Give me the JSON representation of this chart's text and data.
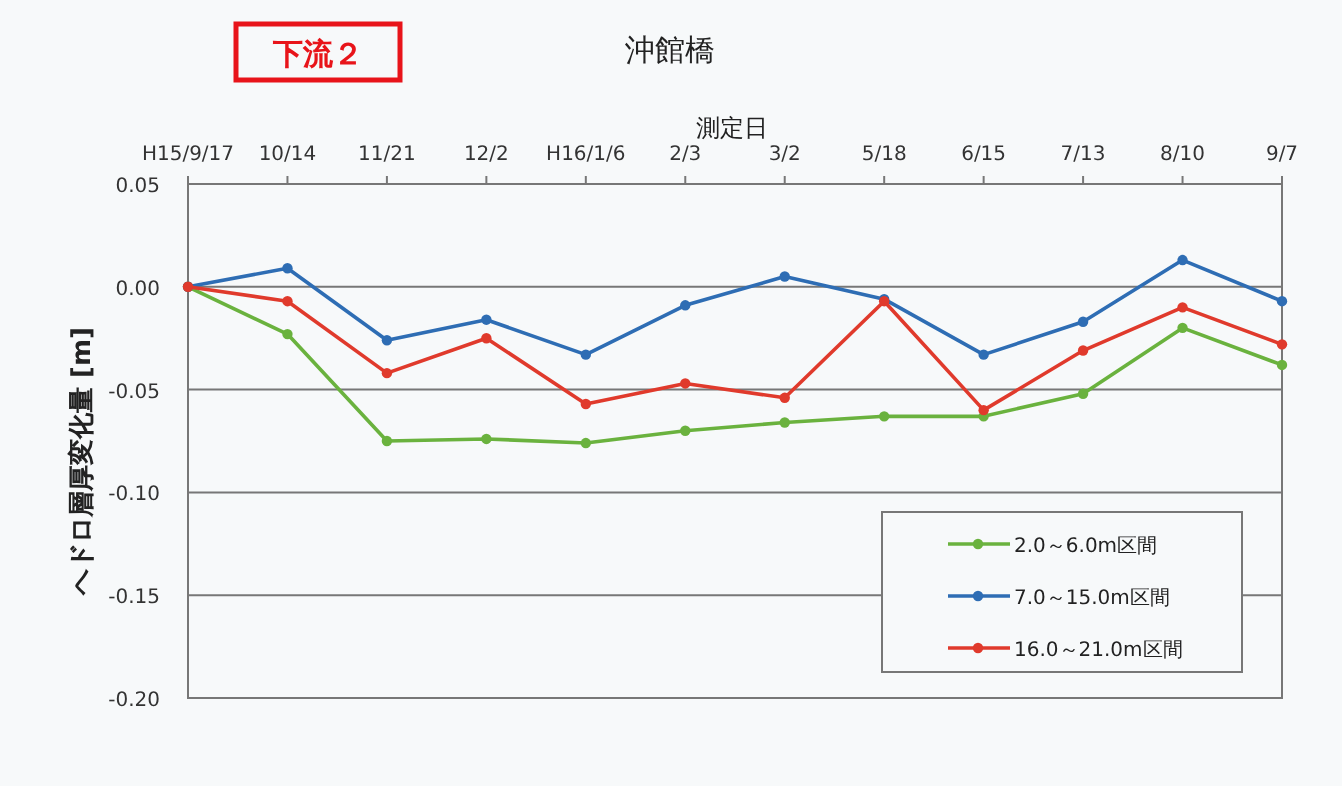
{
  "chart_data": {
    "type": "line",
    "title": "沖館橋",
    "annotations": [
      "下流２"
    ],
    "xlabel": "測定日",
    "ylabel": "ヘドロ層厚変化量 [m]",
    "categories": [
      "H15/9/17",
      "10/14",
      "11/21",
      "12/2",
      "H16/1/6",
      "2/3",
      "3/2",
      "5/18",
      "6/15",
      "7/13",
      "8/10",
      "9/7"
    ],
    "series": [
      {
        "name": "2.0～6.0m区間",
        "color": "#6ab23e",
        "values": [
          0,
          -0.023,
          -0.075,
          -0.074,
          -0.076,
          -0.07,
          -0.066,
          -0.063,
          -0.063,
          -0.052,
          -0.02,
          -0.038
        ]
      },
      {
        "name": "7.0～15.0m区間",
        "color": "#2e6db4",
        "values": [
          0,
          0.009,
          -0.026,
          -0.016,
          -0.033,
          -0.009,
          0.005,
          -0.006,
          -0.033,
          -0.017,
          0.013,
          -0.007
        ]
      },
      {
        "name": "16.0～21.0m区間",
        "color": "#e03a2c",
        "values": [
          0,
          -0.007,
          -0.042,
          -0.025,
          -0.057,
          -0.047,
          -0.054,
          -0.007,
          -0.06,
          -0.031,
          -0.01,
          -0.028
        ]
      }
    ],
    "ylim": [
      -0.2,
      0.05
    ],
    "yticks": [
      {
        "value": 0.05,
        "label": "0.05"
      },
      {
        "value": 0,
        "label": "0.00"
      },
      {
        "value": -0.05,
        "label": "-0.05"
      },
      {
        "value": -0.1,
        "label": "-0.10"
      },
      {
        "value": -0.15,
        "label": "-0.15"
      },
      {
        "value": -0.2,
        "label": "-0.20"
      }
    ],
    "grid": "y",
    "legend": "bottom right",
    "marker": "circle"
  }
}
